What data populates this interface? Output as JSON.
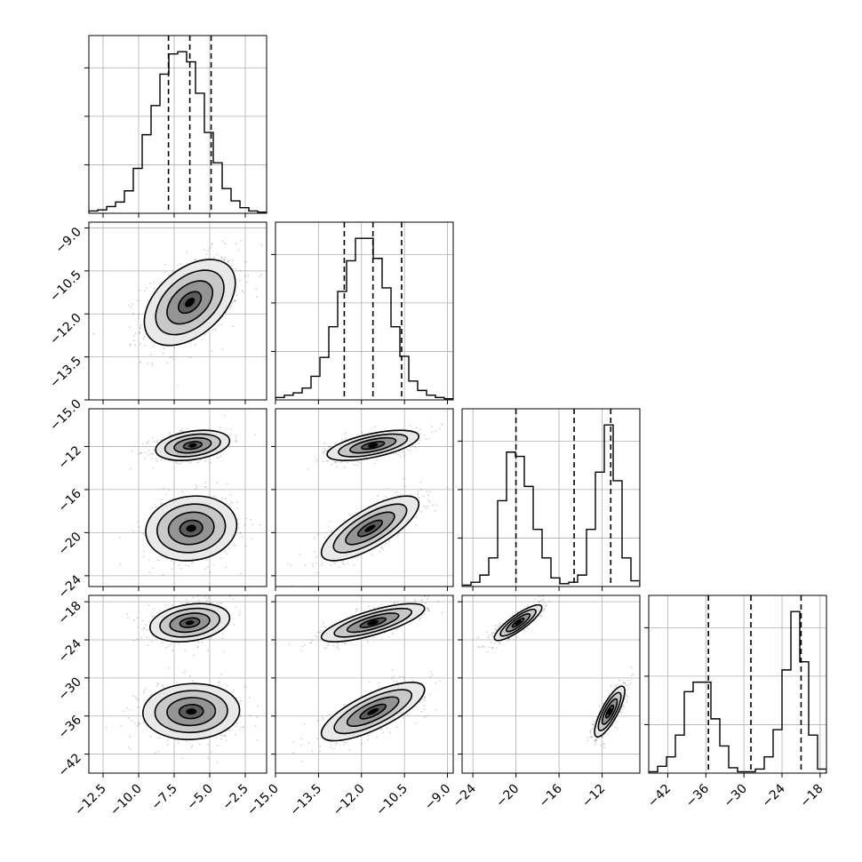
{
  "chart_data": {
    "type": "corner",
    "title": "",
    "grid": true,
    "parameters": [
      {
        "index": 0,
        "range": [
          -13.5,
          -1.0
        ],
        "tick_values": [
          -12.5,
          -10.0,
          -7.5,
          -5.0,
          -2.5
        ],
        "tick_labels": [
          "−12.5",
          "−10.0",
          "−7.5",
          "−5.0",
          "−2.5"
        ],
        "quantiles": [
          -7.9,
          -6.4,
          -4.9
        ],
        "histogram": {
          "edges_start": -13.5,
          "bin_width": 0.625,
          "counts": [
            2,
            3,
            6,
            10,
            20,
            40,
            70,
            96,
            124,
            142,
            144,
            135,
            107,
            72,
            45,
            22,
            11,
            5,
            2,
            1
          ]
        }
      },
      {
        "index": 1,
        "range": [
          -15.0,
          -8.8
        ],
        "tick_values": [
          -15.0,
          -13.5,
          -12.0,
          -10.5,
          -9.0
        ],
        "tick_labels": [
          "−15.0",
          "−13.5",
          "−12.0",
          "−10.5",
          "−9.0"
        ],
        "quantiles": [
          -12.6,
          -11.6,
          -10.6
        ],
        "histogram": {
          "edges_start": -15.0,
          "bin_width": 0.31,
          "counts": [
            2,
            4,
            6,
            10,
            20,
            36,
            62,
            92,
            118,
            137,
            137,
            120,
            95,
            62,
            37,
            16,
            8,
            4,
            2,
            1
          ]
        }
      },
      {
        "index": 2,
        "range": [
          -25.0,
          -8.5
        ],
        "tick_values": [
          -24,
          -20,
          -16,
          -12
        ],
        "tick_labels": [
          "−24",
          "−20",
          "−16",
          "−12"
        ],
        "quantiles": [
          -20.0,
          -14.6,
          -11.2
        ],
        "histogram": {
          "edges_start": -25.0,
          "bin_width": 0.825,
          "counts": [
            1,
            3,
            8,
            20,
            60,
            94,
            91,
            70,
            40,
            20,
            6,
            2,
            3,
            8,
            40,
            80,
            113,
            74,
            20,
            4
          ]
        }
      },
      {
        "index": 3,
        "range": [
          -45.0,
          -17.0
        ],
        "tick_values": [
          -42,
          -36,
          -30,
          -24,
          -18
        ],
        "tick_labels": [
          "−42",
          "−36",
          "−30",
          "−24",
          "−18"
        ],
        "quantiles": [
          -35.6,
          -28.9,
          -21.0
        ],
        "histogram": {
          "edges_start": -45.0,
          "bin_width": 1.4,
          "counts": [
            1,
            5,
            12,
            28,
            60,
            67,
            67,
            40,
            20,
            4,
            1,
            1,
            3,
            12,
            32,
            76,
            119,
            82,
            28,
            3
          ]
        }
      }
    ],
    "pairs": [
      {
        "x": 0,
        "y": 1,
        "modes": [
          {
            "mean": [
              -6.4,
              -11.6
            ],
            "sd": [
              1.6,
              0.75
            ],
            "rho": 0.45,
            "weight": 1.0
          }
        ]
      },
      {
        "x": 0,
        "y": 2,
        "modes": [
          {
            "mean": [
              -6.2,
              -11.9
            ],
            "sd": [
              1.3,
              0.7
            ],
            "rho": 0.3,
            "weight": 0.5
          },
          {
            "mean": [
              -6.3,
              -19.6
            ],
            "sd": [
              1.6,
              1.5
            ],
            "rho": 0.1,
            "weight": 0.5
          }
        ]
      },
      {
        "x": 1,
        "y": 2,
        "modes": [
          {
            "mean": [
              -11.6,
              -11.9
            ],
            "sd": [
              0.8,
              0.7
            ],
            "rho": 0.6,
            "weight": 0.5
          },
          {
            "mean": [
              -11.7,
              -19.6
            ],
            "sd": [
              0.85,
              1.5
            ],
            "rho": 0.75,
            "weight": 0.5
          }
        ]
      },
      {
        "x": 0,
        "y": 3,
        "modes": [
          {
            "mean": [
              -6.4,
              -21.3
            ],
            "sd": [
              1.4,
              1.5
            ],
            "rho": 0.25,
            "weight": 0.5
          },
          {
            "mean": [
              -6.3,
              -35.3
            ],
            "sd": [
              1.7,
              2.2
            ],
            "rho": 0.05,
            "weight": 0.5
          }
        ]
      },
      {
        "x": 1,
        "y": 3,
        "modes": [
          {
            "mean": [
              -11.6,
              -21.3
            ],
            "sd": [
              0.9,
              1.5
            ],
            "rho": 0.75,
            "weight": 0.5
          },
          {
            "mean": [
              -11.6,
              -35.3
            ],
            "sd": [
              0.9,
              2.3
            ],
            "rho": 0.75,
            "weight": 0.5
          }
        ]
      },
      {
        "x": 2,
        "y": 3,
        "modes": [
          {
            "mean": [
              -19.8,
              -21.3
            ],
            "sd": [
              1.1,
              1.4
            ],
            "rho": 0.85,
            "weight": 0.5
          },
          {
            "mean": [
              -11.3,
              -35.3
            ],
            "sd": [
              0.7,
              2.0
            ],
            "rho": 0.8,
            "weight": 0.5
          }
        ]
      }
    ],
    "contour_levels_sigma": [
      0.5,
      1.0,
      1.5,
      2.0
    ]
  }
}
